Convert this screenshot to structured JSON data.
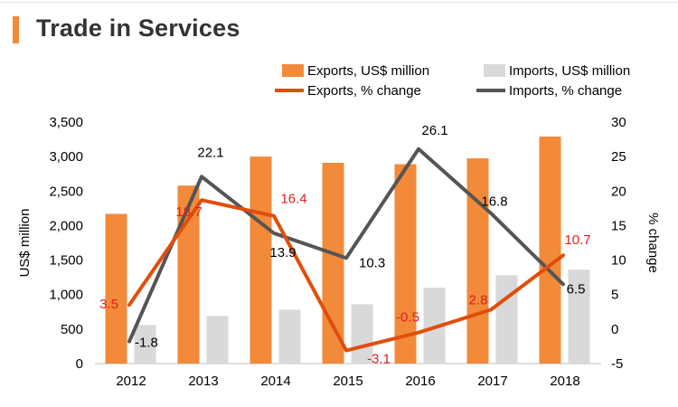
{
  "page": {
    "title": "Trade in Services"
  },
  "colors": {
    "accent": "#f28a3a",
    "exports_bar": "#f28a3a",
    "imports_bar": "#d9d9d9",
    "exports_line": "#e04e0b",
    "imports_line": "#555555",
    "exports_label": "#e02020",
    "imports_label": "#000000"
  },
  "chart_data": {
    "type": "bar",
    "combo": "bar+line",
    "categories": [
      "2012",
      "2013",
      "2014",
      "2015",
      "2016",
      "2017",
      "2018"
    ],
    "ylabel": "US$ million",
    "y2label": "% change",
    "ylim": [
      0,
      3500
    ],
    "y2lim": [
      -5,
      30
    ],
    "yticks": [
      0,
      500,
      1000,
      1500,
      2000,
      2500,
      3000,
      3500
    ],
    "yticklabels": [
      "0",
      "500",
      "1,000",
      "1,500",
      "2,000",
      "2,500",
      "3,000",
      "3,500"
    ],
    "y2ticks": [
      -5,
      0,
      5,
      10,
      15,
      20,
      25,
      30
    ],
    "y2ticklabels": [
      "-5",
      "0",
      "5",
      "10",
      "15",
      "20",
      "25",
      "30"
    ],
    "grid": false,
    "legend_position": "top-right",
    "series": [
      {
        "name": "Exports, US$ million",
        "kind": "bar",
        "axis": "left",
        "values": [
          2170,
          2580,
          3000,
          2910,
          2890,
          2975,
          3290
        ]
      },
      {
        "name": "Imports, US$ million",
        "kind": "bar",
        "axis": "left",
        "values": [
          560,
          690,
          780,
          860,
          1100,
          1280,
          1360
        ]
      },
      {
        "name": "Exports, % change",
        "kind": "line",
        "axis": "right",
        "values": [
          3.5,
          18.7,
          16.4,
          -3.1,
          -0.5,
          2.8,
          10.7
        ],
        "labels": [
          "3.5",
          "18.7",
          "16.4",
          "-3.1",
          "-0.5",
          "2.8",
          "10.7"
        ]
      },
      {
        "name": "Imports, % change",
        "kind": "line",
        "axis": "right",
        "values": [
          -1.8,
          22.1,
          13.9,
          10.3,
          26.1,
          16.8,
          6.5
        ],
        "labels": [
          "-1.8",
          "22.1",
          "13.9",
          "10.3",
          "26.1",
          "16.8",
          "6.5"
        ]
      }
    ]
  }
}
